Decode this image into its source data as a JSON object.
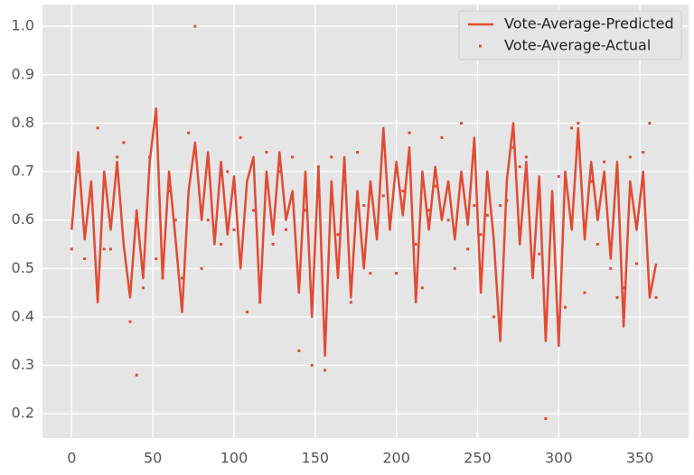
{
  "chart_data": {
    "type": "line_scatter",
    "x": [
      0,
      4,
      8,
      12,
      16,
      20,
      24,
      28,
      32,
      36,
      40,
      44,
      48,
      52,
      56,
      60,
      64,
      68,
      72,
      76,
      80,
      84,
      88,
      92,
      96,
      100,
      104,
      108,
      112,
      116,
      120,
      124,
      128,
      132,
      136,
      140,
      144,
      148,
      152,
      156,
      160,
      164,
      168,
      172,
      176,
      180,
      184,
      188,
      192,
      196,
      200,
      204,
      208,
      212,
      216,
      220,
      224,
      228,
      232,
      236,
      240,
      244,
      248,
      252,
      256,
      260,
      264,
      268,
      272,
      276,
      280,
      284,
      288,
      292,
      296,
      300,
      304,
      308,
      312,
      316,
      320,
      324,
      328,
      332,
      336,
      340,
      344,
      348,
      352,
      356,
      360
    ],
    "series": [
      {
        "name": "Vote-Average-Predicted",
        "color": "#e24a33",
        "kind": "line",
        "values": [
          0.58,
          0.74,
          0.56,
          0.68,
          0.43,
          0.7,
          0.58,
          0.72,
          0.55,
          0.44,
          0.62,
          0.48,
          0.72,
          0.83,
          0.48,
          0.7,
          0.56,
          0.41,
          0.66,
          0.76,
          0.6,
          0.74,
          0.55,
          0.72,
          0.57,
          0.69,
          0.5,
          0.68,
          0.73,
          0.43,
          0.7,
          0.57,
          0.74,
          0.6,
          0.66,
          0.45,
          0.7,
          0.4,
          0.71,
          0.32,
          0.68,
          0.48,
          0.73,
          0.44,
          0.66,
          0.5,
          0.68,
          0.56,
          0.79,
          0.58,
          0.72,
          0.61,
          0.75,
          0.43,
          0.7,
          0.58,
          0.71,
          0.6,
          0.68,
          0.56,
          0.7,
          0.59,
          0.77,
          0.45,
          0.7,
          0.56,
          0.35,
          0.68,
          0.8,
          0.55,
          0.72,
          0.48,
          0.69,
          0.35,
          0.66,
          0.34,
          0.7,
          0.58,
          0.79,
          0.56,
          0.72,
          0.6,
          0.7,
          0.52,
          0.72,
          0.38,
          0.68,
          0.58,
          0.7,
          0.44,
          0.51
        ]
      },
      {
        "name": "Vote-Average-Actual",
        "color": "#e24a33",
        "kind": "scatter",
        "values": [
          0.54,
          0.7,
          0.52,
          0.67,
          0.79,
          0.54,
          0.54,
          0.73,
          0.76,
          0.39,
          0.28,
          0.46,
          0.73,
          0.52,
          0.48,
          0.66,
          0.6,
          0.48,
          0.78,
          1.0,
          0.5,
          0.6,
          0.58,
          0.55,
          0.7,
          0.58,
          0.77,
          0.41,
          0.62,
          0.43,
          0.74,
          0.55,
          0.7,
          0.58,
          0.73,
          0.33,
          0.62,
          0.3,
          0.71,
          0.29,
          0.73,
          0.57,
          0.7,
          0.43,
          0.74,
          0.63,
          0.49,
          0.57,
          0.65,
          0.6,
          0.49,
          0.66,
          0.78,
          0.55,
          0.46,
          0.62,
          0.67,
          0.77,
          0.6,
          0.5,
          0.8,
          0.54,
          0.63,
          0.57,
          0.61,
          0.4,
          0.63,
          0.64,
          0.75,
          0.71,
          0.73,
          0.51,
          0.53,
          0.19,
          0.62,
          0.69,
          0.42,
          0.79,
          0.8,
          0.45,
          0.68,
          0.55,
          0.72,
          0.5,
          0.44,
          0.46,
          0.73,
          0.51,
          0.74,
          0.8,
          0.44
        ]
      }
    ],
    "xlim": [
      -18,
      380
    ],
    "ylim": [
      0.15,
      1.045
    ],
    "xticks": [
      0,
      50,
      100,
      150,
      200,
      250,
      300,
      350
    ],
    "yticks": [
      0.2,
      0.3,
      0.4,
      0.5,
      0.6,
      0.7,
      0.8,
      0.9,
      {
        "value": 1,
        "label": "1.0"
      }
    ],
    "grid": true,
    "legend": "upper right"
  }
}
